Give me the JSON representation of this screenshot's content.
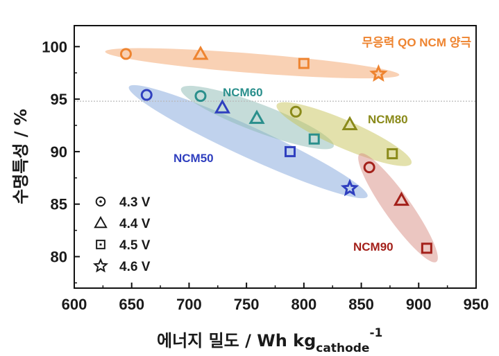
{
  "chart_data": {
    "type": "scatter",
    "xlabel_main": "에너지 밀도 / Wh kg",
    "xlabel_sub": "cathode",
    "xlabel_sup": "-1",
    "ylabel": "수명특성 / %",
    "xlim": [
      600,
      950
    ],
    "ylim": [
      77,
      102
    ],
    "xticks": [
      600,
      650,
      700,
      750,
      800,
      850,
      900,
      950
    ],
    "yticks": [
      80,
      85,
      90,
      95,
      100
    ],
    "reference_line_y": 94.8,
    "legend": [
      {
        "marker": "circle",
        "label": "4.3 V"
      },
      {
        "marker": "triangle",
        "label": "4.4 V"
      },
      {
        "marker": "square",
        "label": "4.5 V"
      },
      {
        "marker": "star",
        "label": "4.6 V"
      }
    ],
    "series": [
      {
        "name": "무응력 QO NCM 양극",
        "color": "#ee8430",
        "fill": "#f4a46a",
        "points": [
          {
            "x": 645,
            "y": 99.3,
            "marker": "circle"
          },
          {
            "x": 710,
            "y": 99.3,
            "marker": "triangle"
          },
          {
            "x": 800,
            "y": 98.4,
            "marker": "square"
          },
          {
            "x": 865,
            "y": 97.4,
            "marker": "star"
          }
        ]
      },
      {
        "name": "NCM50",
        "color": "#2f3fbf",
        "fill": "#82a6dc",
        "points": [
          {
            "x": 663,
            "y": 95.4,
            "marker": "circle"
          },
          {
            "x": 729,
            "y": 94.2,
            "marker": "triangle"
          },
          {
            "x": 788,
            "y": 90.0,
            "marker": "square"
          },
          {
            "x": 840,
            "y": 86.5,
            "marker": "star"
          }
        ]
      },
      {
        "name": "NCM60",
        "color": "#2a8f8c",
        "fill": "#8cb9b4",
        "points": [
          {
            "x": 710,
            "y": 95.3,
            "marker": "circle"
          },
          {
            "x": 759,
            "y": 93.2,
            "marker": "triangle"
          },
          {
            "x": 809,
            "y": 91.2,
            "marker": "square"
          }
        ]
      },
      {
        "name": "NCM80",
        "color": "#8a8a1a",
        "fill": "#c8c45a",
        "points": [
          {
            "x": 793,
            "y": 93.8,
            "marker": "circle"
          },
          {
            "x": 840,
            "y": 92.6,
            "marker": "triangle"
          },
          {
            "x": 877,
            "y": 89.8,
            "marker": "square"
          }
        ]
      },
      {
        "name": "NCM90",
        "color": "#a3201a",
        "fill": "#d88d84",
        "points": [
          {
            "x": 857,
            "y": 88.5,
            "marker": "circle"
          },
          {
            "x": 885,
            "y": 85.4,
            "marker": "triangle"
          },
          {
            "x": 907,
            "y": 80.8,
            "marker": "square"
          }
        ]
      }
    ]
  }
}
